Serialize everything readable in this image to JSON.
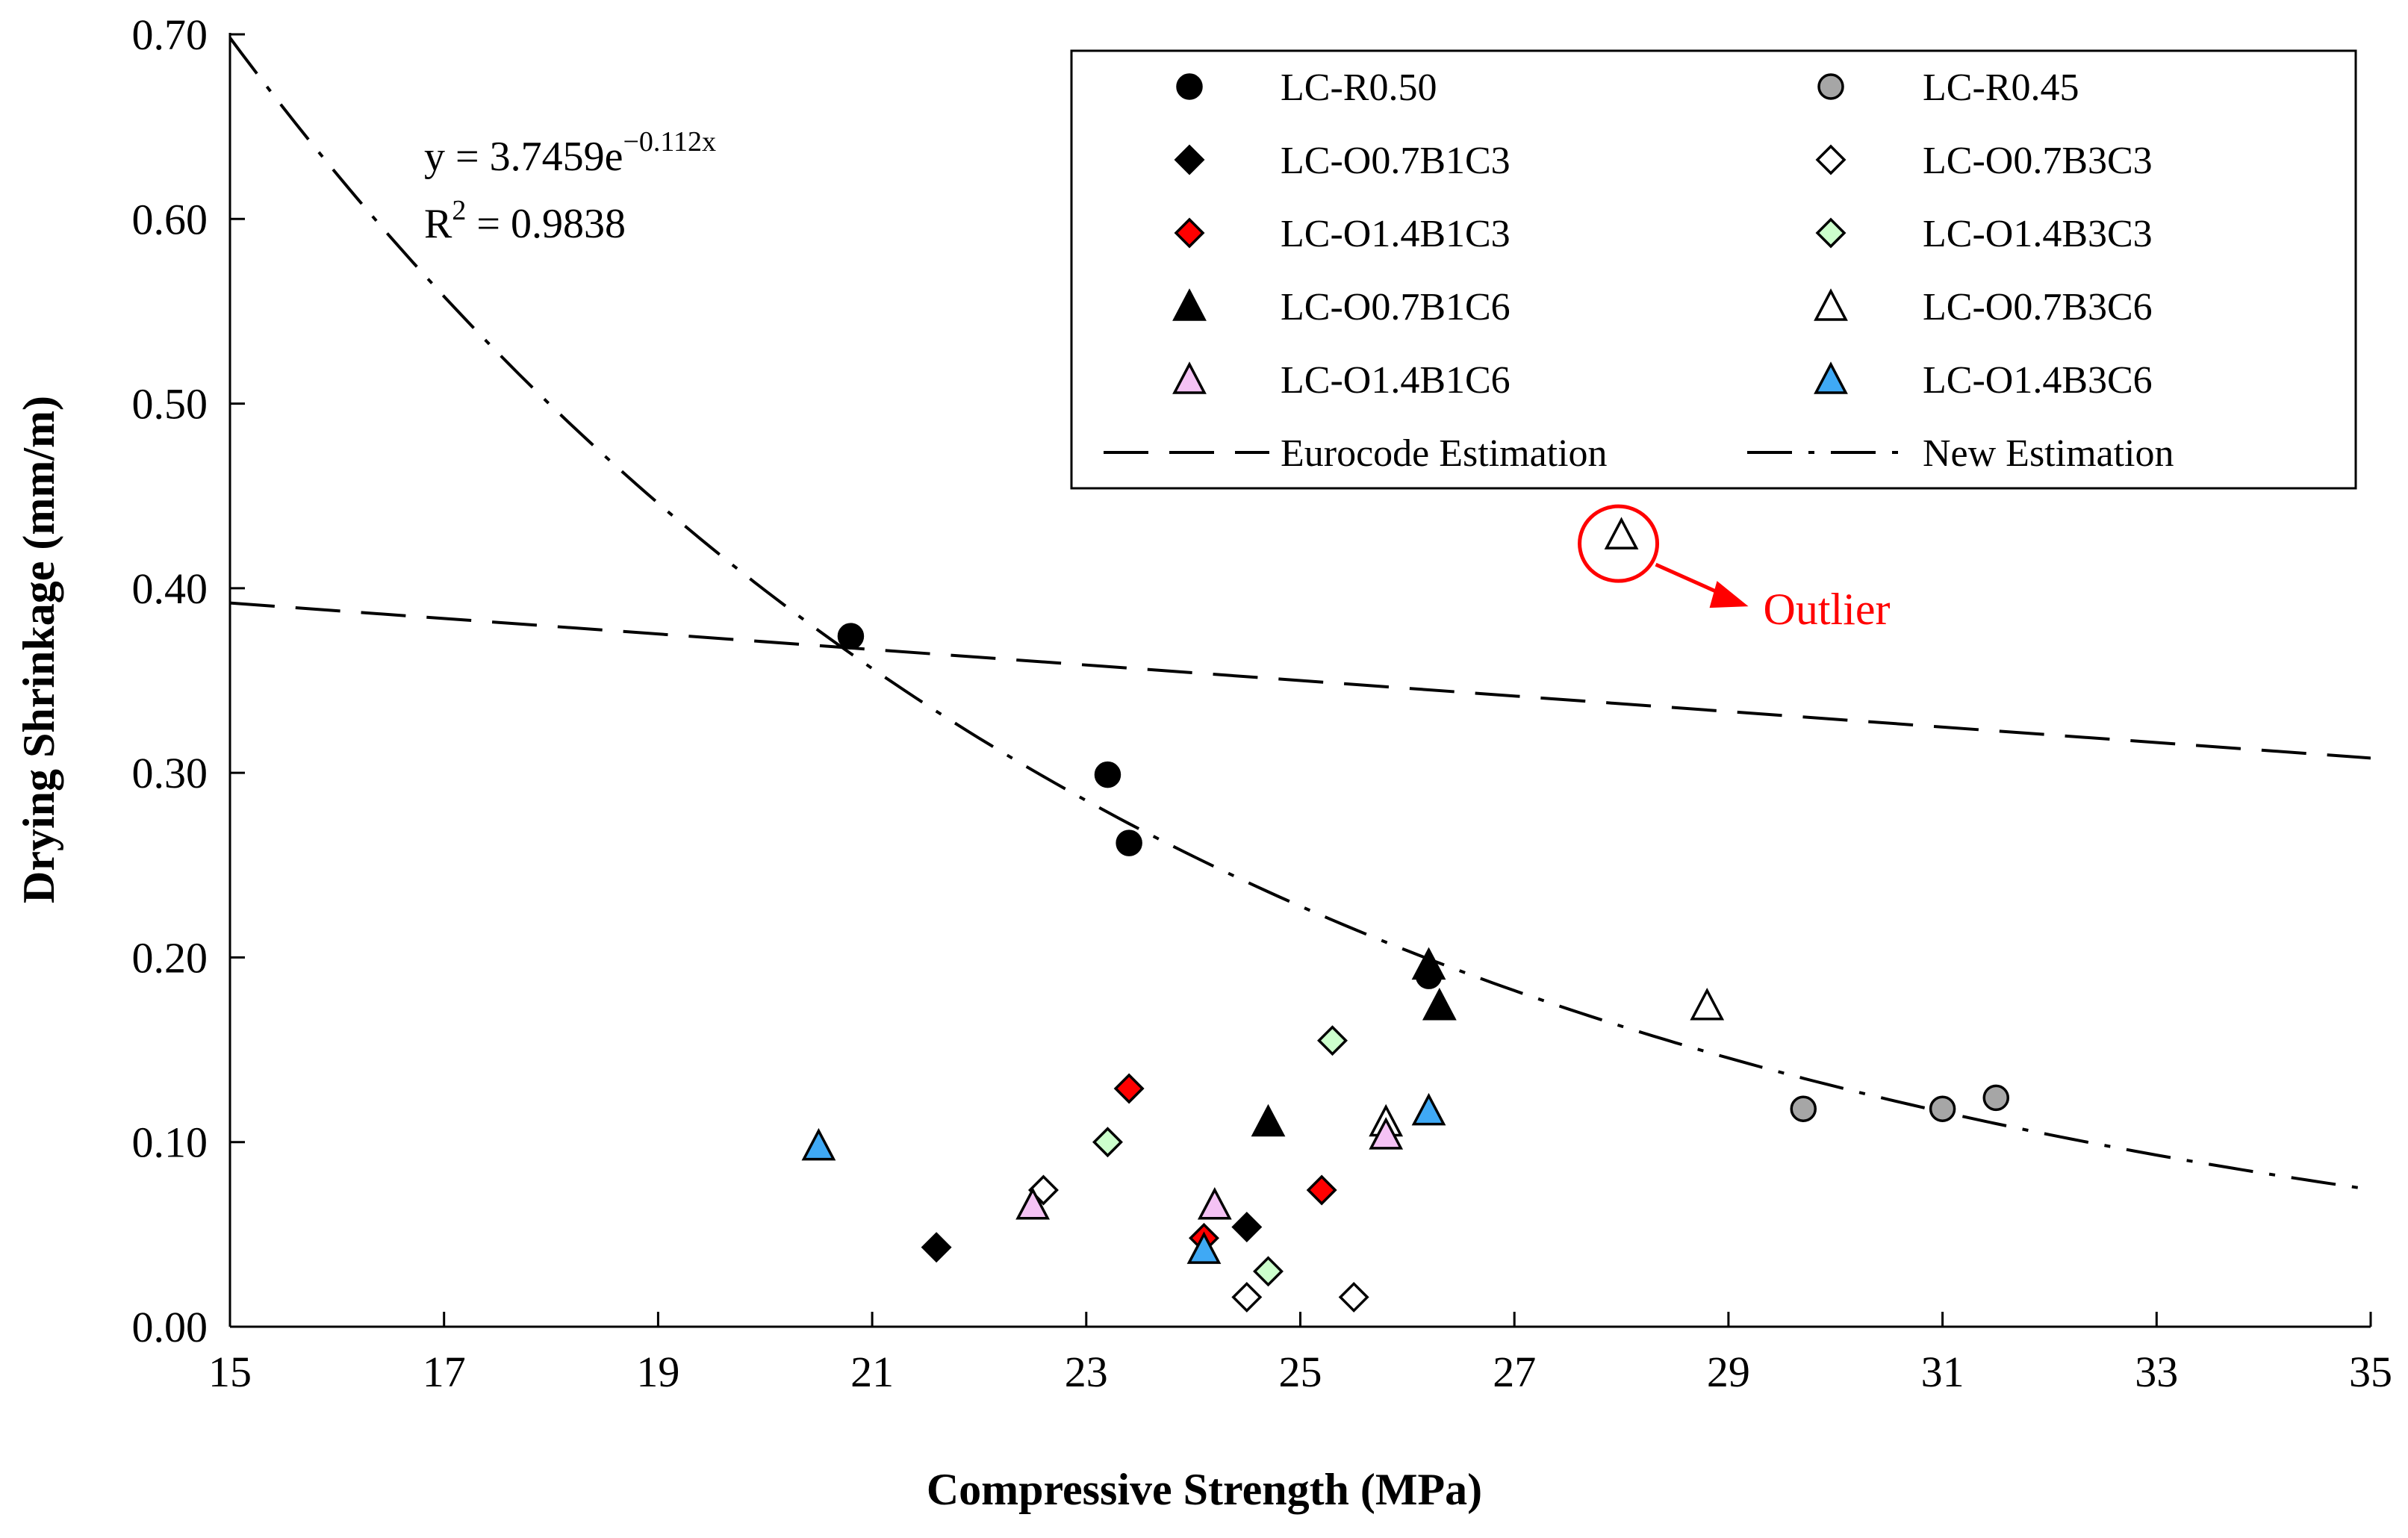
{
  "chart_data": {
    "type": "scatter",
    "title": "",
    "xlabel": "Compressive Strength (MPa)",
    "ylabel": "Drying Shrinkage (mm/m)",
    "xlim": [
      15,
      35
    ],
    "ylim": [
      0,
      0.7
    ],
    "xticks": [
      15,
      17,
      19,
      21,
      23,
      25,
      27,
      29,
      31,
      33,
      35
    ],
    "yticks": [
      0,
      0.1,
      0.2,
      0.3,
      0.4,
      0.5,
      0.6,
      0.7
    ],
    "xtick_labels": [
      "15",
      "17",
      "19",
      "21",
      "23",
      "25",
      "27",
      "29",
      "31",
      "33",
      "35"
    ],
    "ytick_labels": [
      "0.00",
      "0.10",
      "0.20",
      "0.30",
      "0.40",
      "0.50",
      "0.60",
      "0.70"
    ],
    "grid": false,
    "legend_position": "top-right",
    "series": [
      {
        "name": "LC-R0.50",
        "marker": "circle",
        "fill": "#000000",
        "points": [
          [
            20.8,
            0.374
          ],
          [
            23.2,
            0.299
          ],
          [
            23.4,
            0.262
          ],
          [
            26.2,
            0.19
          ]
        ]
      },
      {
        "name": "LC-R0.45",
        "marker": "circle",
        "fill": "#a6a6a6",
        "points": [
          [
            29.7,
            0.118
          ],
          [
            31.0,
            0.118
          ],
          [
            31.5,
            0.124
          ]
        ]
      },
      {
        "name": "LC-O0.7B1C3",
        "marker": "diamond",
        "fill": "#000000",
        "points": [
          [
            21.6,
            0.043
          ],
          [
            24.5,
            0.054
          ]
        ]
      },
      {
        "name": "LC-O0.7B3C3",
        "marker": "diamond",
        "fill": "#ffffff",
        "points": [
          [
            22.6,
            0.074
          ],
          [
            24.5,
            0.016
          ],
          [
            25.5,
            0.016
          ]
        ]
      },
      {
        "name": "LC-O1.4B1C3",
        "marker": "diamond",
        "fill": "#ff0000",
        "points": [
          [
            23.4,
            0.129
          ],
          [
            24.1,
            0.048
          ],
          [
            25.2,
            0.074
          ]
        ]
      },
      {
        "name": "LC-O1.4B3C3",
        "marker": "diamond",
        "fill": "#ccffcc",
        "points": [
          [
            23.2,
            0.1
          ],
          [
            24.7,
            0.03
          ],
          [
            25.3,
            0.155
          ]
        ]
      },
      {
        "name": "LC-O0.7B1C6",
        "marker": "triangle",
        "fill": "#000000",
        "points": [
          [
            24.7,
            0.111
          ],
          [
            26.2,
            0.196
          ],
          [
            26.3,
            0.174
          ]
        ]
      },
      {
        "name": "LC-O0.7B3C6",
        "marker": "triangle",
        "fill": "#ffffff",
        "points": [
          [
            25.8,
            0.111
          ],
          [
            28.0,
            0.429
          ],
          [
            28.8,
            0.174
          ]
        ]
      },
      {
        "name": "LC-O1.4B1C6",
        "marker": "triangle",
        "fill": "#f4c2f4",
        "points": [
          [
            22.5,
            0.066
          ],
          [
            24.2,
            0.066
          ],
          [
            25.8,
            0.104
          ]
        ]
      },
      {
        "name": "LC-O1.4B3C6",
        "marker": "triangle",
        "fill": "#3fa9f5",
        "points": [
          [
            20.5,
            0.098
          ],
          [
            24.1,
            0.042
          ],
          [
            26.2,
            0.117
          ]
        ]
      }
    ],
    "lines": [
      {
        "name": "Eurocode Estimation",
        "style": "dashed",
        "x": [
          15,
          35
        ],
        "y": [
          0.392,
          0.308
        ]
      },
      {
        "name": "New Estimation",
        "style": "dash-dot",
        "equation": "y = 3.7459e^(-0.112x)",
        "a": 3.7459,
        "b": -0.112,
        "x_range": [
          15,
          35
        ]
      }
    ],
    "annotations": {
      "equation": {
        "prefix": "y = 3.7459e",
        "exponent": "−0.112x"
      },
      "r_squared": {
        "prefix": "R",
        "sup": "2",
        "value": " = 0.9838"
      },
      "outlier": {
        "label": "Outlier",
        "color": "#ff0000",
        "x": 28.0,
        "y": 0.429
      }
    }
  }
}
